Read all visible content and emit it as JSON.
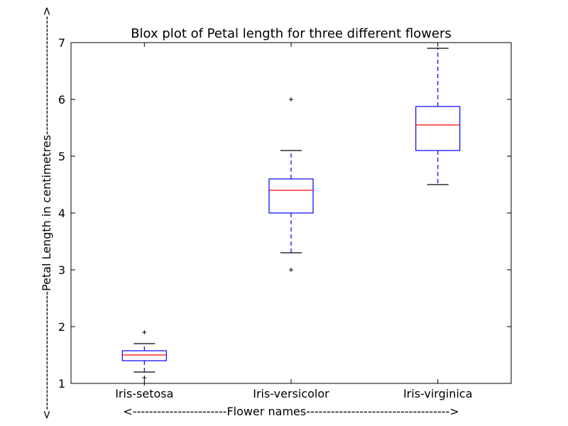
{
  "chart_data": {
    "type": "box",
    "title": "Blox plot of Petal length for three different flowers",
    "xlabel": "<-----------------------Flower names----------------------------------->",
    "ylabel": "<-----------------------------Petal Length in centimetres----------------------------->",
    "categories": [
      "Iris-setosa",
      "Iris-versicolor",
      "Iris-virginica"
    ],
    "ylim": [
      1,
      7
    ],
    "yticks": [
      1,
      2,
      3,
      4,
      5,
      6,
      7
    ],
    "grid": false,
    "boxes": [
      {
        "category": "Iris-setosa",
        "whisker_low": 1.2,
        "q1": 1.4,
        "median": 1.5,
        "q3": 1.575,
        "whisker_high": 1.7,
        "outliers": [
          1.1,
          1.0,
          1.9
        ]
      },
      {
        "category": "Iris-versicolor",
        "whisker_low": 3.3,
        "q1": 4.0,
        "median": 4.4,
        "q3": 4.6,
        "whisker_high": 5.1,
        "outliers": [
          3.0,
          6.0
        ]
      },
      {
        "category": "Iris-virginica",
        "whisker_low": 4.5,
        "q1": 5.1,
        "median": 5.55,
        "q3": 5.875,
        "whisker_high": 6.9,
        "outliers": []
      }
    ],
    "colors": {
      "box": "#0000ff",
      "median": "#ff0000",
      "whisker_cap": "#000000",
      "outlier": "#000000"
    }
  }
}
